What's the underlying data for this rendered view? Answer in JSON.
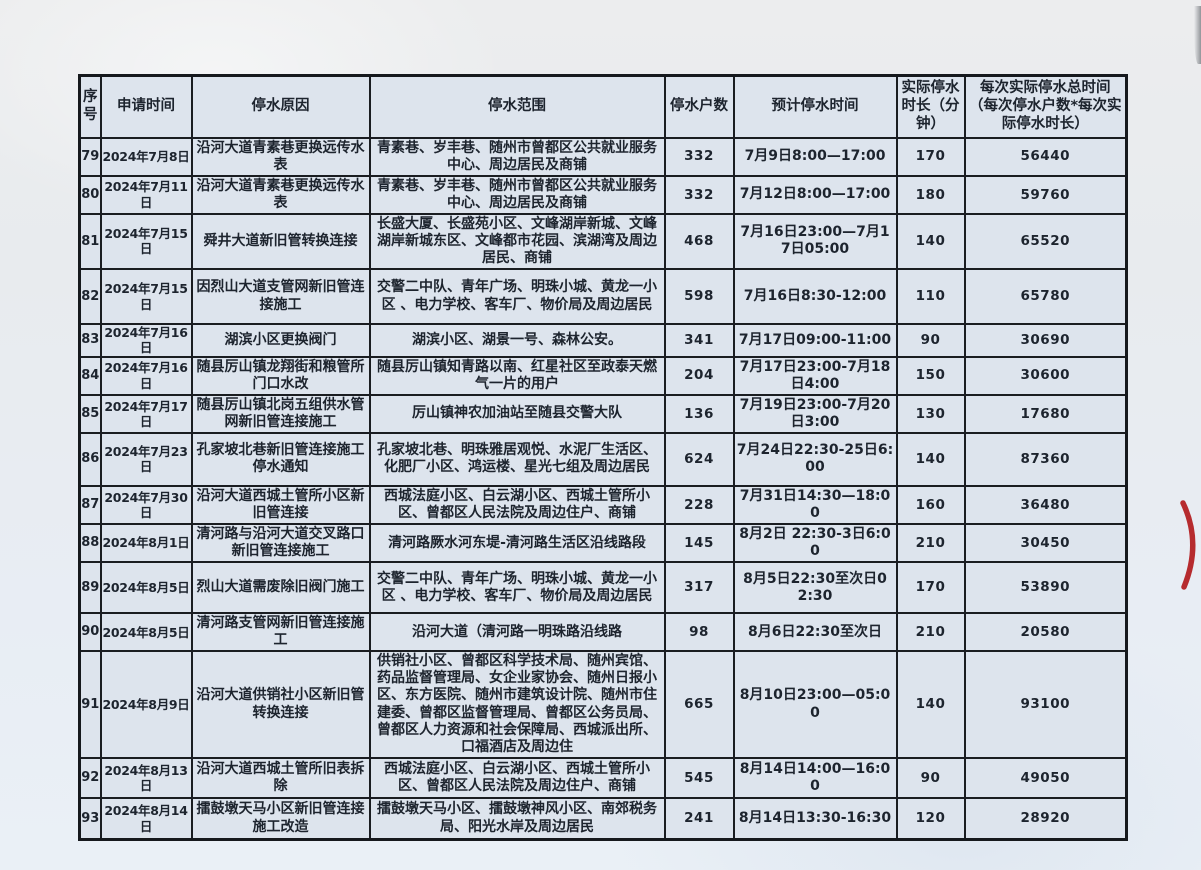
{
  "colors": {
    "paper": "#e8ecf2",
    "cell_background": "#dde4ed",
    "border": "#1a1d21",
    "ink": "#1d242e",
    "pen_mark_red": "#b62b2e"
  },
  "annotations": {
    "pen_mark": "red-curved-check-stroke"
  },
  "table": {
    "headers": [
      "序号",
      "申请时间",
      "停水原因",
      "停水范围",
      "停水户数",
      "预计停水时间",
      "实际停水时长（分钟）",
      "每次实际停水总时间（每次停水户数*每次实际停水时长）"
    ],
    "rows": [
      [
        "79",
        "2024年7月8日",
        "沿河大道青素巷更换远传水表",
        "青素巷、岁丰巷、随州市曾都区公共就业服务中心、周边居民及商铺",
        "332",
        "7月9日8:00—17:00",
        "170",
        "56440"
      ],
      [
        "80",
        "2024年7月11日",
        "沿河大道青素巷更换远传水表",
        "青素巷、岁丰巷、随州市曾都区公共就业服务中心、周边居民及商铺",
        "332",
        "7月12日8:00—17:00",
        "180",
        "59760"
      ],
      [
        "81",
        "2024年7月15日",
        "舜井大道新旧管转换连接",
        "长盛大厦、长盛苑小区、文峰湖岸新城、文峰湖岸新城东区、文峰都市花园、滨湖湾及周边居民、商铺",
        "468",
        "7月16日23:00—7月17日05:00",
        "140",
        "65520"
      ],
      [
        "82",
        "2024年7月15日",
        "因烈山大道支管网新旧管连接施工",
        "交警二中队、青年广场、明珠小城、黄龙一小区 、电力学校、客车厂、物价局及周边居民",
        "598",
        "7月16日8:30-12:00",
        "110",
        "65780"
      ],
      [
        "83",
        "2024年7月16日",
        "湖滨小区更换阀门",
        "湖滨小区、湖景一号、森林公安。",
        "341",
        "7月17日09:00-11:00",
        "90",
        "30690"
      ],
      [
        "84",
        "2024年7月16日",
        "随县厉山镇龙翔街和粮管所门口水改",
        "随县厉山镇知青路以南、红星社区至政泰天燃气一片的用户",
        "204",
        "7月17日23:00-7月18日4:00",
        "150",
        "30600"
      ],
      [
        "85",
        "2024年7月17日",
        "随县厉山镇北岗五组供水管网新旧管连接施工",
        "厉山镇神农加油站至随县交警大队",
        "136",
        "7月19日23:00-7月20日3:00",
        "130",
        "17680"
      ],
      [
        "86",
        "2024年7月23日",
        "孔家坡北巷新旧管连接施工停水通知",
        "孔家坡北巷、明珠雅居观悦、水泥厂生活区、化肥厂小区、鸿运楼、星光七组及周边居民",
        "624",
        "7月24日22:30-25日6:00",
        "140",
        "87360"
      ],
      [
        "87",
        "2024年7月30日",
        "沿河大道西城土管所小区新旧管连接",
        "西城法庭小区、白云湖小区、西城土管所小区、曾都区人民法院及周边住户、商铺",
        "228",
        "7月31日14:30—18:00",
        "160",
        "36480"
      ],
      [
        "88",
        "2024年8月1日",
        "清河路与沿河大道交叉路口新旧管连接施工",
        "清河路厥水河东堤-清河路生活区沿线路段",
        "145",
        "8月2日 22:30-3日6:00",
        "210",
        "30450"
      ],
      [
        "89",
        "2024年8月5日",
        "烈山大道需废除旧阀门施工",
        "交警二中队、青年广场、明珠小城、黄龙一小区 、电力学校、客车厂、物价局及周边居民",
        "317",
        "8月5日22:30至次日02:30",
        "170",
        "53890"
      ],
      [
        "90",
        "2024年8月5日",
        "清河路支管网新旧管连接施工",
        "沿河大道（清河路一明珠路沿线路",
        "98",
        "8月6日22:30至次日",
        "210",
        "20580"
      ],
      [
        "91",
        "2024年8月9日",
        "沿河大道供销社小区新旧管转换连接",
        "供销社小区、曾都区科学技术局、随州宾馆、药品监督管理局、女企业家协会、随州日报小区、东方医院、随州市建筑设计院、随州市住建委、曾都区监督管理局、曾都区公务员局、曾都区人力资源和社会保障局、西城派出所、口福酒店及周边住",
        "665",
        "8月10日23:00—05:00",
        "140",
        "93100"
      ],
      [
        "92",
        "2024年8月13日",
        "沿河大道西城土管所旧表拆除",
        "西城法庭小区、白云湖小区、西城土管所小区、曾都区人民法院及周边住户、商铺",
        "545",
        "8月14日14:00—16:00",
        "90",
        "49050"
      ],
      [
        "93",
        "2024年8月14日",
        "擂鼓墩天马小区新旧管连接施工改造",
        "擂鼓墩天马小区、擂鼓墩神风小区、南郊税务局、阳光水岸及周边居民",
        "241",
        "8月14日13:30-16:30",
        "120",
        "28920"
      ]
    ]
  }
}
